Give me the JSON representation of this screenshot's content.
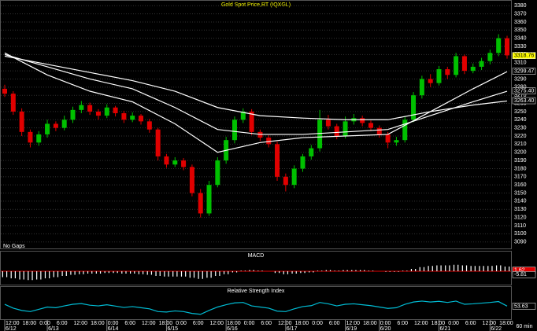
{
  "chart_data": [
    {
      "type": "candlestick",
      "title": "Gold Spot Price,RT (IQXGL)",
      "note": "No Gaps",
      "up_color": "#00c000",
      "down_color": "#e00000",
      "grid": true,
      "ylim": [
        3082,
        3386
      ],
      "yticks": [
        3090,
        3100,
        3110,
        3120,
        3130,
        3140,
        3150,
        3160,
        3170,
        3180,
        3190,
        3200,
        3210,
        3220,
        3230,
        3240,
        3250,
        3260,
        3270,
        3280,
        3290,
        3300,
        3310,
        3320,
        3330,
        3340,
        3350,
        3360,
        3370,
        3380
      ],
      "candles": [
        [
          3278,
          3283,
          3268,
          3272
        ],
        [
          3272,
          3275,
          3246,
          3250
        ],
        [
          3250,
          3254,
          3220,
          3225
        ],
        [
          3225,
          3228,
          3206,
          3212
        ],
        [
          3212,
          3226,
          3208,
          3222
        ],
        [
          3222,
          3240,
          3218,
          3235
        ],
        [
          3235,
          3238,
          3226,
          3230
        ],
        [
          3230,
          3245,
          3227,
          3240
        ],
        [
          3240,
          3256,
          3236,
          3252
        ],
        [
          3252,
          3263,
          3248,
          3258
        ],
        [
          3258,
          3261,
          3246,
          3250
        ],
        [
          3250,
          3253,
          3240,
          3245
        ],
        [
          3245,
          3259,
          3242,
          3255
        ],
        [
          3255,
          3257,
          3244,
          3248
        ],
        [
          3248,
          3251,
          3236,
          3240
        ],
        [
          3240,
          3249,
          3237,
          3245
        ],
        [
          3245,
          3247,
          3234,
          3238
        ],
        [
          3238,
          3241,
          3224,
          3228
        ],
        [
          3228,
          3230,
          3190,
          3195
        ],
        [
          3195,
          3198,
          3181,
          3185
        ],
        [
          3185,
          3194,
          3182,
          3190
        ],
        [
          3190,
          3193,
          3178,
          3182
        ],
        [
          3182,
          3185,
          3146,
          3150
        ],
        [
          3150,
          3155,
          3120,
          3125
        ],
        [
          3125,
          3165,
          3122,
          3160
        ],
        [
          3160,
          3194,
          3157,
          3190
        ],
        [
          3190,
          3219,
          3186,
          3215
        ],
        [
          3215,
          3244,
          3211,
          3240
        ],
        [
          3240,
          3254,
          3236,
          3250
        ],
        [
          3250,
          3253,
          3221,
          3225
        ],
        [
          3225,
          3228,
          3214,
          3218
        ],
        [
          3218,
          3221,
          3206,
          3210
        ],
        [
          3210,
          3213,
          3165,
          3170
        ],
        [
          3170,
          3174,
          3152,
          3160
        ],
        [
          3160,
          3184,
          3156,
          3180
        ],
        [
          3180,
          3198,
          3176,
          3195
        ],
        [
          3195,
          3209,
          3191,
          3205
        ],
        [
          3205,
          3252,
          3201,
          3240
        ],
        [
          3240,
          3246,
          3228,
          3232
        ],
        [
          3232,
          3235,
          3216,
          3220
        ],
        [
          3220,
          3244,
          3217,
          3238
        ],
        [
          3238,
          3247,
          3234,
          3242
        ],
        [
          3242,
          3245,
          3232,
          3236
        ],
        [
          3236,
          3239,
          3226,
          3230
        ],
        [
          3230,
          3233,
          3218,
          3222
        ],
        [
          3222,
          3225,
          3205,
          3212
        ],
        [
          3212,
          3219,
          3208,
          3215
        ],
        [
          3215,
          3244,
          3212,
          3240
        ],
        [
          3240,
          3274,
          3237,
          3270
        ],
        [
          3270,
          3294,
          3266,
          3290
        ],
        [
          3290,
          3296,
          3280,
          3285
        ],
        [
          3285,
          3306,
          3282,
          3302
        ],
        [
          3302,
          3305,
          3290,
          3295
        ],
        [
          3295,
          3322,
          3292,
          3318
        ],
        [
          3318,
          3320,
          3296,
          3300
        ],
        [
          3300,
          3309,
          3297,
          3305
        ],
        [
          3305,
          3316,
          3301,
          3312
        ],
        [
          3312,
          3326,
          3308,
          3322
        ],
        [
          3322,
          3345,
          3318,
          3340
        ],
        [
          3340,
          3343,
          3315,
          3319
        ]
      ],
      "moving_averages": [
        {
          "color": "#ffffff",
          "x": [
            0,
            5,
            10,
            15,
            20,
            25,
            30,
            35,
            40,
            45,
            50,
            55,
            59
          ],
          "values": [
            3322,
            3295,
            3275,
            3262,
            3235,
            3200,
            3212,
            3218,
            3220,
            3222,
            3250,
            3278,
            3299
          ]
        },
        {
          "color": "#ffffff",
          "x": [
            0,
            5,
            10,
            15,
            20,
            25,
            30,
            35,
            40,
            45,
            50,
            55,
            59
          ],
          "values": [
            3320,
            3305,
            3290,
            3278,
            3255,
            3228,
            3222,
            3222,
            3225,
            3228,
            3245,
            3262,
            3275
          ]
        },
        {
          "color": "#ffffff",
          "x": [
            0,
            5,
            10,
            15,
            20,
            25,
            30,
            35,
            40,
            45,
            50,
            55,
            59
          ],
          "values": [
            3318,
            3308,
            3298,
            3288,
            3275,
            3255,
            3245,
            3242,
            3240,
            3240,
            3250,
            3258,
            3263
          ]
        }
      ],
      "last_labels": [
        {
          "value": 3318.76,
          "label": "3318.76",
          "color": "#ffff00"
        },
        {
          "value": 3299.47,
          "label": "3299.47",
          "color": "#000000"
        },
        {
          "value": 3275.4,
          "label": "3275.40",
          "color": "#000000"
        },
        {
          "value": 3263.4,
          "label": "3263.40",
          "color": "#000000"
        }
      ]
    },
    {
      "type": "bar",
      "title": "MACD",
      "color": "#ffffff",
      "zero_color": "#e00000",
      "ylim": [
        -20,
        20
      ],
      "values": [
        -10,
        -12,
        -14,
        -15,
        -14,
        -12,
        -10,
        -8,
        -6,
        -5,
        -4,
        -4,
        -3,
        -3,
        -4,
        -4,
        -5,
        -6,
        -8,
        -9,
        -9,
        -9,
        -11,
        -13,
        -11,
        -8,
        -5,
        -2,
        1,
        2,
        1,
        0,
        -3,
        -5,
        -4,
        -3,
        -2,
        1,
        2,
        1,
        2,
        2,
        2,
        1,
        0,
        -1,
        -1,
        1,
        4,
        7,
        9,
        10,
        10,
        11,
        10,
        9,
        9,
        9,
        10,
        8
      ],
      "last_labels": [
        {
          "value": 1.62,
          "label": "1.62",
          "color": "#e00000"
        },
        {
          "value": -5.81,
          "label": "-5.81",
          "color": "#000000"
        }
      ]
    },
    {
      "type": "line",
      "title": "Relative Strength Index",
      "color": "#00bcd4",
      "ylim": [
        0,
        100
      ],
      "values": [
        62,
        45,
        35,
        30,
        40,
        50,
        47,
        55,
        62,
        65,
        58,
        55,
        60,
        54,
        48,
        52,
        47,
        42,
        30,
        28,
        33,
        30,
        22,
        18,
        35,
        50,
        60,
        68,
        70,
        55,
        50,
        45,
        32,
        30,
        42,
        52,
        56,
        70,
        64,
        55,
        62,
        64,
        60,
        56,
        50,
        44,
        47,
        62,
        72,
        76,
        72,
        75,
        70,
        76,
        62,
        64,
        67,
        70,
        74,
        54
      ],
      "last_labels": [
        {
          "value": 53.63,
          "label": "53.63",
          "color": "#000000"
        }
      ],
      "interval": "60 min",
      "categories": [
        "12:00",
        null,
        "18:00",
        null,
        "0:00",
        null,
        "6:00",
        null,
        "12:00",
        null,
        "18:00",
        null,
        "0:00",
        null,
        "6:00",
        null,
        "12:00",
        null,
        "18:00",
        null,
        "0:00",
        null,
        "6:00",
        null,
        "12:00",
        null,
        "18:00",
        null,
        "0:00",
        null,
        "6:00",
        null,
        "12:00",
        null,
        "18:00",
        null,
        "0:00",
        null,
        "6:00",
        null,
        "12:00",
        null,
        "18:00",
        null,
        "0:00",
        null,
        "6:00",
        null,
        "12:00",
        null,
        "18:00",
        null,
        "0:00",
        null,
        "6:00",
        null,
        "12:00",
        null,
        "18:00",
        null
      ],
      "dates": [
        "6/12",
        null,
        null,
        null,
        null,
        "6/13",
        null,
        null,
        null,
        null,
        null,
        null,
        "6/14",
        null,
        null,
        null,
        null,
        null,
        null,
        "6/15",
        null,
        null,
        null,
        null,
        null,
        null,
        "6/16",
        null,
        null,
        null,
        null,
        null,
        null,
        "6/17",
        null,
        null,
        null,
        null,
        null,
        null,
        "6/19",
        null,
        null,
        null,
        "6/20",
        null,
        null,
        null,
        null,
        null,
        null,
        "6/21",
        null,
        null,
        null,
        null,
        null,
        "6/22",
        null,
        null
      ]
    }
  ]
}
